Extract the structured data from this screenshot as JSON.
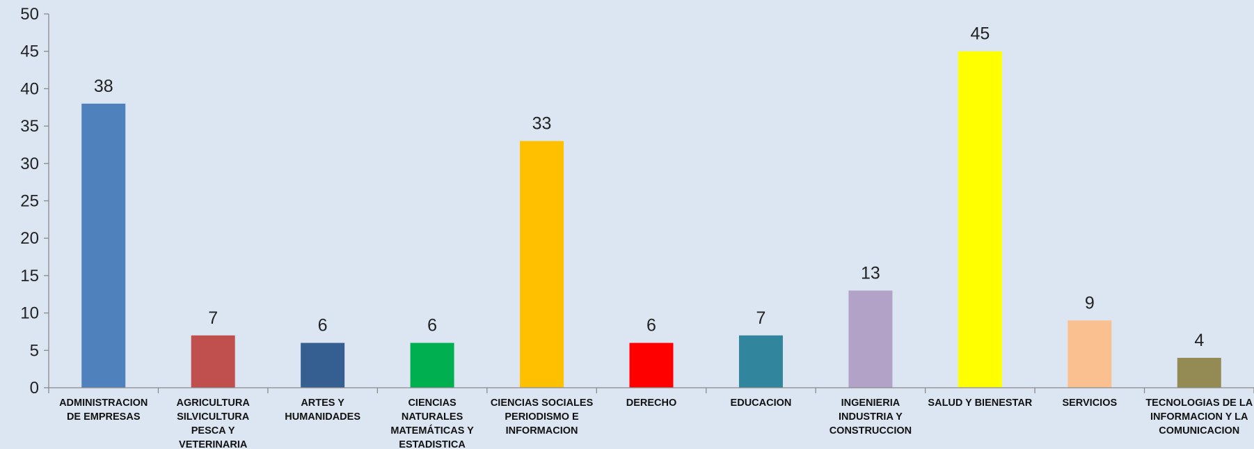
{
  "chart_data": {
    "type": "bar",
    "title": "",
    "xlabel": "",
    "ylabel": "",
    "ylim": [
      0,
      50
    ],
    "yticks": [
      0,
      5,
      10,
      15,
      20,
      25,
      30,
      35,
      40,
      45,
      50
    ],
    "grid": false,
    "legend": "none",
    "data_labels": true,
    "categories": [
      [
        "ADMINISTRACION",
        "DE EMPRESAS"
      ],
      [
        "AGRICULTURA",
        "SILVICULTURA",
        "PESCA Y",
        "VETERINARIA"
      ],
      [
        "ARTES Y",
        "HUMANIDADES"
      ],
      [
        "CIENCIAS",
        "NATURALES",
        "MATEMÁTICAS Y",
        "ESTADISTICA"
      ],
      [
        "CIENCIAS SOCIALES",
        "PERIODISMO E",
        "INFORMACION"
      ],
      [
        "DERECHO"
      ],
      [
        "EDUCACION"
      ],
      [
        "INGENIERIA",
        "INDUSTRIA Y",
        "CONSTRUCCION"
      ],
      [
        "SALUD Y BIENESTAR"
      ],
      [
        "SERVICIOS"
      ],
      [
        "TECNOLOGIAS DE LA",
        "INFORMACION Y LA",
        "COMUNICACION"
      ]
    ],
    "values": [
      38,
      7,
      6,
      6,
      33,
      6,
      7,
      13,
      45,
      9,
      4
    ],
    "colors": [
      "#4f81bd",
      "#c0504d",
      "#365f91",
      "#00b050",
      "#ffc000",
      "#ff0000",
      "#31859c",
      "#b2a2c7",
      "#ffff00",
      "#fac090",
      "#948a54"
    ]
  }
}
